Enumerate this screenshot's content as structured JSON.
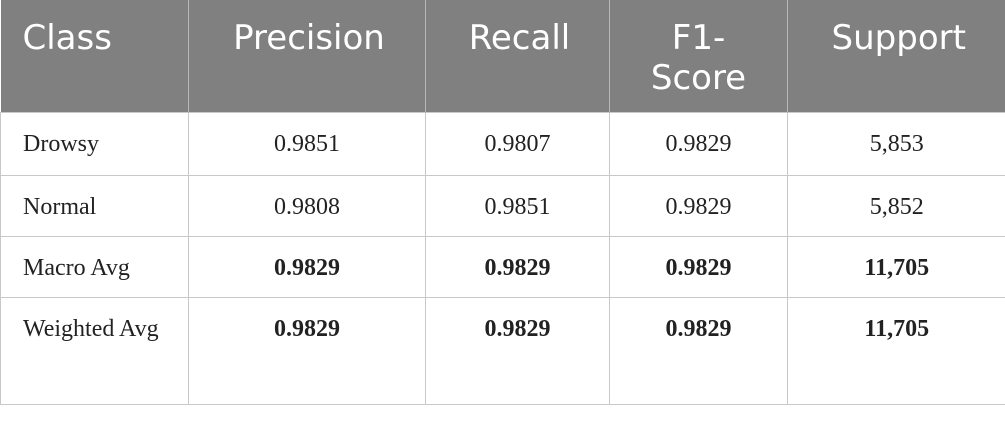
{
  "table": {
    "header": [
      "Class",
      "Precision",
      "Recall",
      "F1-Score",
      "Support"
    ],
    "rows": [
      [
        "Drowsy",
        "0.9851",
        "0.9807",
        "0.9829",
        "5,853"
      ],
      [
        "Normal",
        "0.9808",
        "0.9851",
        "0.9829",
        "5,852"
      ],
      [
        "Macro Avg",
        "0.9829",
        "0.9829",
        "0.9829",
        "11,705"
      ],
      [
        "Weighted Avg",
        "0.9829",
        "0.9829",
        "0.9829",
        "11,705"
      ]
    ]
  }
}
